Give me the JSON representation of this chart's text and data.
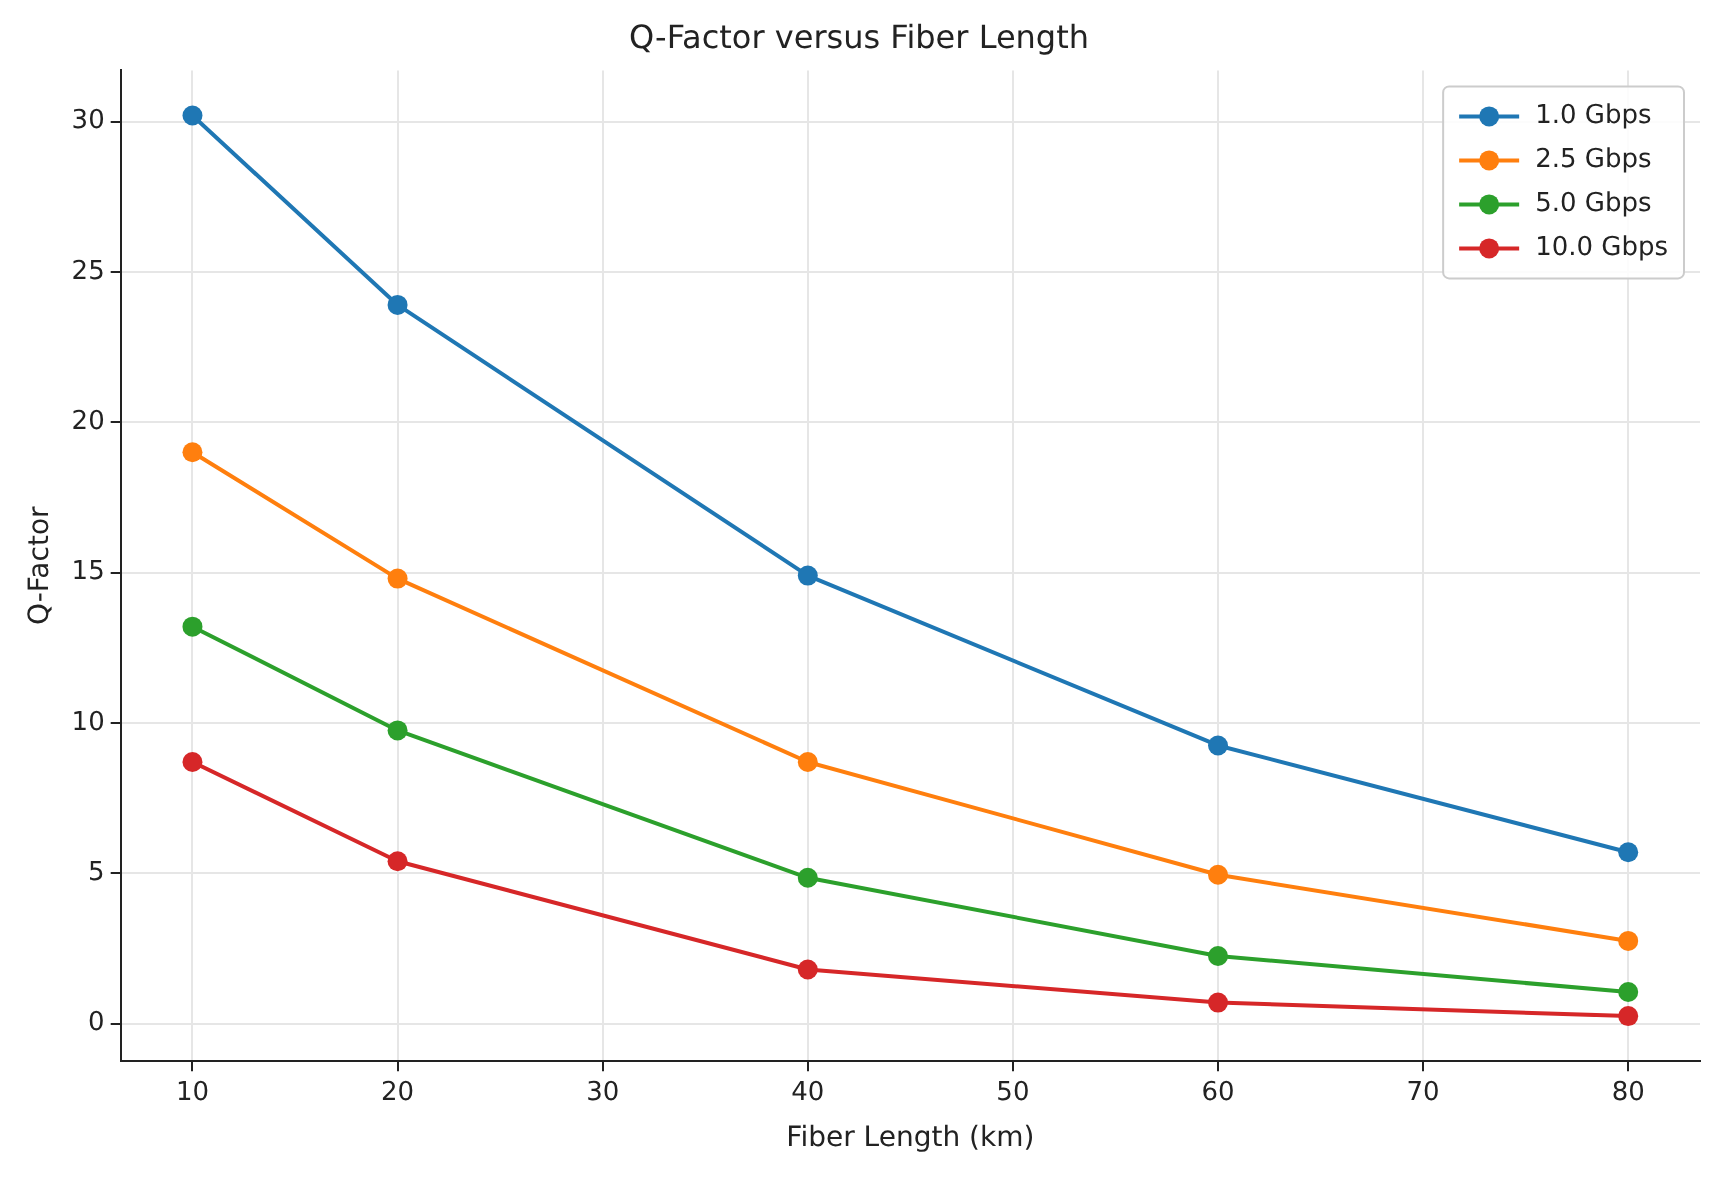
{
  "chart_data": {
    "type": "line",
    "title": "Q-Factor versus Fiber Length",
    "xlabel": "Fiber Length (km)",
    "ylabel": "Q-Factor",
    "x": [
      10,
      20,
      40,
      60,
      80
    ],
    "series": [
      {
        "name": "1.0 Gbps",
        "color": "#1f77b4",
        "values": [
          30.2,
          23.9,
          14.9,
          9.25,
          5.7
        ]
      },
      {
        "name": "2.5 Gbps",
        "color": "#ff7f0e",
        "values": [
          19.0,
          14.8,
          8.7,
          4.95,
          2.75
        ]
      },
      {
        "name": "5.0 Gbps",
        "color": "#2ca02c",
        "values": [
          13.2,
          9.75,
          4.85,
          2.25,
          1.05
        ]
      },
      {
        "name": "10.0 Gbps",
        "color": "#d62728",
        "values": [
          8.7,
          5.4,
          1.8,
          0.7,
          0.25
        ]
      }
    ],
    "xlim": [
      6.5,
      83.5
    ],
    "xticks": [
      10,
      20,
      30,
      40,
      50,
      60,
      70,
      80
    ],
    "ylim": [
      -1.25,
      31.7
    ],
    "yticks": [
      0,
      5,
      10,
      15,
      20,
      25,
      30
    ],
    "grid": true,
    "legend": "top right",
    "marker": "circle",
    "line_style": "solid"
  }
}
